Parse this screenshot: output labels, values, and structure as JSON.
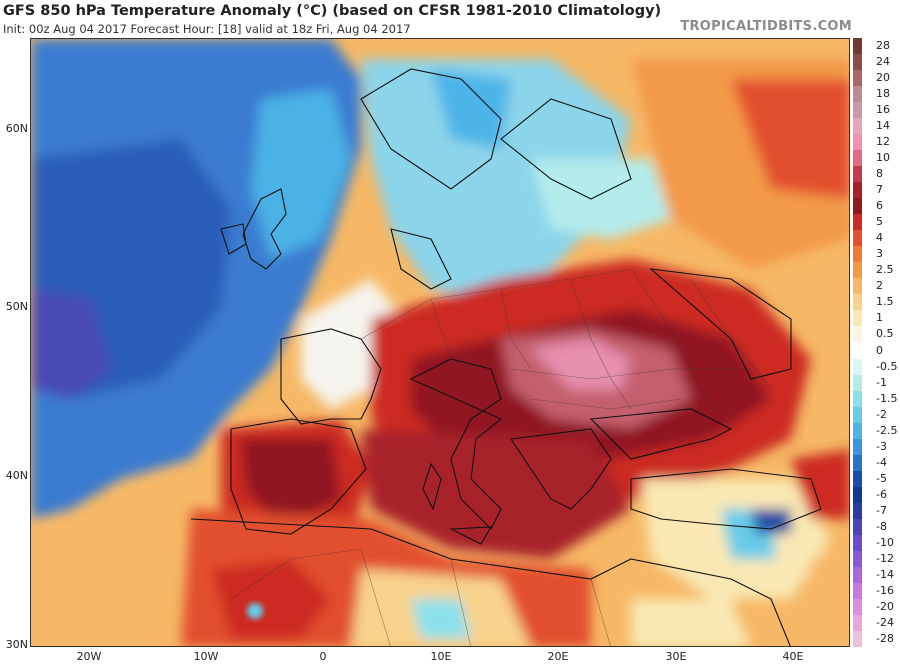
{
  "header": {
    "title": "GFS 850 hPa Temperature Anomaly (°C) (based on CFSR 1981-2010 Climatology)",
    "subtitle": "Init: 00z Aug 04 2017   Forecast Hour: [18]   valid at 18z Fri, Aug 04 2017",
    "brand": "TROPICALTIDBITS.COM"
  },
  "axes": {
    "lat_labels": [
      "60N",
      "50N",
      "40N",
      "30N"
    ],
    "lon_labels": [
      "20W",
      "10W",
      "0",
      "10E",
      "20E",
      "30E",
      "40E"
    ]
  },
  "colorbar": {
    "labels": [
      "28",
      "24",
      "20",
      "18",
      "16",
      "14",
      "12",
      "10",
      "8",
      "7",
      "6",
      "5",
      "4",
      "3",
      "2.5",
      "2",
      "1.5",
      "1",
      "0.5",
      "0",
      "-0.5",
      "-1",
      "-1.5",
      "-2",
      "-2.5",
      "-3",
      "-4",
      "-5",
      "-6",
      "-7",
      "-8",
      "-10",
      "-12",
      "-14",
      "-16",
      "-20",
      "-24",
      "-28"
    ],
    "colors": [
      "#6e3a34",
      "#8a4e48",
      "#a8686a",
      "#bd8c90",
      "#cc98a8",
      "#e6a4c0",
      "#f090b4",
      "#e26a86",
      "#c43c4c",
      "#a8202c",
      "#901820",
      "#cc2a22",
      "#e2502e",
      "#ef7a36",
      "#f39a48",
      "#f6b866",
      "#f8d28c",
      "#f9e8b4",
      "#fbf6e2",
      "#ffffff",
      "#d8f4f4",
      "#b4ecec",
      "#8ce0ea",
      "#68cce8",
      "#4eb4e8",
      "#3b96dc",
      "#2a74c6",
      "#1a4ea6",
      "#123a8a",
      "#2c3c9c",
      "#4a44b4",
      "#6a4ec8",
      "#8a5ad6",
      "#a868dc",
      "#c47ae0",
      "#d890e0",
      "#e4a8dc",
      "#ecc0dc"
    ]
  },
  "map": {
    "ocean_color": "#2a6ac0",
    "hot_color": "#9a1c26",
    "warm_color": "#e24a2c"
  }
}
